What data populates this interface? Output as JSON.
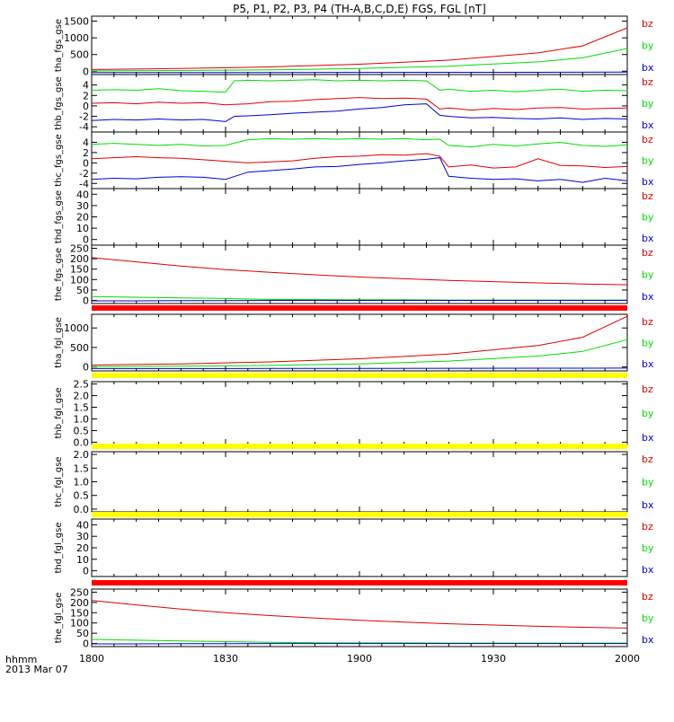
{
  "title": "P5, P1, P2, P3, P4 (TH-A,B,C,D,E) FGS, FGL [nT]",
  "x_axis": {
    "tick_labels": [
      "1800",
      "1830",
      "1900",
      "1930",
      "2000"
    ],
    "corner_label_1": "hhmm",
    "corner_label_2": "2013 Mar 07"
  },
  "colors": {
    "bx": "#0000cc",
    "by": "#00dd00",
    "bz": "#dd0000",
    "flag_red": "#ff0000",
    "flag_yellow": "#ffff00"
  },
  "chart_data": [
    {
      "type": "line",
      "ylabel": "tha_fgs_gse",
      "yticks": [
        "0",
        "500",
        "1000",
        "1500"
      ],
      "ylim": [
        -100,
        1650
      ],
      "legend": [
        "bz",
        "by",
        "bx"
      ],
      "x_minutes": [
        0,
        20,
        40,
        60,
        80,
        100,
        110,
        120
      ],
      "series": [
        {
          "name": "bz",
          "values": [
            50,
            80,
            130,
            210,
            330,
            550,
            760,
            1300
          ]
        },
        {
          "name": "by",
          "values": [
            10,
            20,
            40,
            80,
            150,
            280,
            400,
            680
          ]
        },
        {
          "name": "bx",
          "values": [
            -40,
            -40,
            -38,
            -36,
            -34,
            -32,
            -30,
            -28
          ]
        }
      ]
    },
    {
      "type": "line",
      "ylabel": "thb_fgs_gse",
      "yticks": [
        "-4",
        "-2",
        "0",
        "2",
        "4"
      ],
      "ylim": [
        -5,
        6
      ],
      "legend": [
        "bz",
        "by",
        "bx"
      ],
      "x_minutes": [
        0,
        5,
        10,
        15,
        20,
        25,
        30,
        32,
        35,
        40,
        45,
        50,
        55,
        60,
        65,
        70,
        75,
        78,
        80,
        85,
        90,
        95,
        100,
        105,
        110,
        115,
        120
      ],
      "series": [
        {
          "name": "by",
          "values": [
            3.0,
            3.1,
            3.0,
            3.3,
            2.9,
            2.8,
            2.6,
            4.8,
            4.9,
            4.8,
            4.9,
            5.0,
            4.8,
            4.9,
            4.8,
            4.9,
            4.8,
            3.0,
            3.2,
            2.8,
            3.0,
            2.7,
            3.0,
            3.2,
            2.8,
            3.0,
            2.9
          ]
        },
        {
          "name": "bz",
          "values": [
            0.5,
            0.6,
            0.4,
            0.7,
            0.5,
            0.6,
            0.2,
            0.3,
            0.4,
            0.8,
            0.9,
            1.2,
            1.4,
            1.6,
            1.4,
            1.5,
            1.3,
            -0.6,
            -0.4,
            -0.8,
            -0.5,
            -0.7,
            -0.4,
            -0.3,
            -0.6,
            -0.5,
            -0.4
          ]
        },
        {
          "name": "bx",
          "values": [
            -2.8,
            -2.6,
            -2.7,
            -2.5,
            -2.7,
            -2.6,
            -3.0,
            -2.0,
            -1.9,
            -1.7,
            -1.4,
            -1.2,
            -1.0,
            -0.6,
            -0.3,
            0.2,
            0.4,
            -1.8,
            -2.0,
            -2.3,
            -2.2,
            -2.4,
            -2.5,
            -2.3,
            -2.6,
            -2.4,
            -2.5
          ]
        }
      ]
    },
    {
      "type": "line",
      "ylabel": "thc_fgs_gse",
      "yticks": [
        "-4",
        "-2",
        "0",
        "2",
        "4"
      ],
      "ylim": [
        -5,
        6
      ],
      "legend": [
        "bz",
        "by",
        "bx"
      ],
      "x_minutes": [
        0,
        5,
        10,
        15,
        20,
        25,
        30,
        35,
        40,
        45,
        50,
        55,
        60,
        65,
        70,
        75,
        78,
        80,
        85,
        90,
        95,
        100,
        105,
        110,
        115,
        120
      ],
      "series": [
        {
          "name": "by",
          "values": [
            3.6,
            3.8,
            3.6,
            3.4,
            3.6,
            3.3,
            3.4,
            4.5,
            4.7,
            4.6,
            4.7,
            4.6,
            4.7,
            4.6,
            4.7,
            4.5,
            4.6,
            3.4,
            3.1,
            3.6,
            3.3,
            3.7,
            4.0,
            3.4,
            3.2,
            3.5
          ]
        },
        {
          "name": "bz",
          "values": [
            0.8,
            1.0,
            1.2,
            1.0,
            0.9,
            0.6,
            0.3,
            0.0,
            0.2,
            0.4,
            0.9,
            1.2,
            1.3,
            1.6,
            1.5,
            1.8,
            1.3,
            -0.8,
            -0.4,
            -1.0,
            -0.8,
            0.8,
            -0.5,
            -0.6,
            -0.9,
            -0.7
          ]
        },
        {
          "name": "bx",
          "values": [
            -3.2,
            -3.0,
            -3.1,
            -2.8,
            -2.7,
            -2.8,
            -3.2,
            -1.8,
            -1.5,
            -1.2,
            -0.8,
            -0.7,
            -0.3,
            0.0,
            0.4,
            0.7,
            1.0,
            -2.6,
            -3.0,
            -3.2,
            -3.1,
            -3.5,
            -3.2,
            -3.8,
            -3.0,
            -3.5
          ]
        }
      ]
    },
    {
      "type": "line",
      "ylabel": "thd_fgs_gse",
      "yticks": [
        "0",
        "10",
        "20",
        "30",
        "40"
      ],
      "ylim": [
        -5,
        45
      ],
      "legend": [
        "bz",
        "by",
        "bx"
      ],
      "x_minutes": [],
      "series": []
    },
    {
      "type": "line",
      "ylabel": "the_fgs_gse",
      "yticks": [
        "0",
        "50",
        "100",
        "150",
        "200",
        "250"
      ],
      "ylim": [
        -15,
        265
      ],
      "legend": [
        "bz",
        "by",
        "bx"
      ],
      "x_minutes": [
        0,
        10,
        20,
        30,
        40,
        50,
        60,
        70,
        80,
        90,
        100,
        110,
        120
      ],
      "series": [
        {
          "name": "bz",
          "values": [
            205,
            185,
            165,
            148,
            135,
            123,
            112,
            104,
            96,
            90,
            84,
            79,
            75
          ]
        },
        {
          "name": "by",
          "values": [
            18,
            15,
            12,
            9,
            5,
            4,
            3,
            3,
            2,
            2,
            2,
            2,
            2
          ]
        },
        {
          "name": "bx",
          "values": [
            -2,
            -2,
            -1,
            -1,
            0,
            0,
            0,
            0,
            0,
            0,
            0,
            0,
            0
          ]
        }
      ]
    },
    {
      "type": "line",
      "ylabel": "tha_fgl_gse",
      "yticks": [
        "0",
        "500",
        "1000"
      ],
      "ylim": [
        -100,
        1350
      ],
      "legend": [
        "bz",
        "by",
        "bx"
      ],
      "x_minutes": [
        0,
        20,
        40,
        60,
        80,
        100,
        110,
        120
      ],
      "series": [
        {
          "name": "bz",
          "values": [
            50,
            80,
            130,
            210,
            330,
            550,
            760,
            1300
          ]
        },
        {
          "name": "by",
          "values": [
            10,
            20,
            40,
            80,
            150,
            280,
            400,
            700
          ]
        },
        {
          "name": "bx",
          "values": [
            -40,
            -40,
            -38,
            -36,
            -34,
            -32,
            -30,
            -28
          ]
        }
      ]
    },
    {
      "type": "line",
      "ylabel": "thb_fgl_gse",
      "yticks": [
        "0.0",
        "0.5",
        "1.0",
        "1.5",
        "2.0",
        "2.5"
      ],
      "ylim": [
        -0.1,
        2.6
      ],
      "legend": [
        "bz",
        "by",
        "bx"
      ],
      "x_minutes": [],
      "series": []
    },
    {
      "type": "line",
      "ylabel": "thc_fgl_gse",
      "yticks": [
        "0.0",
        "0.5",
        "1.0",
        "1.5",
        "2.0"
      ],
      "ylim": [
        -0.1,
        2.1
      ],
      "legend": [
        "bz",
        "by",
        "bx"
      ],
      "x_minutes": [],
      "series": []
    },
    {
      "type": "line",
      "ylabel": "thd_fgl_gse",
      "yticks": [
        "0",
        "10",
        "20",
        "30",
        "40"
      ],
      "ylim": [
        -5,
        45
      ],
      "legend": [
        "bz",
        "by",
        "bx"
      ],
      "x_minutes": [],
      "series": []
    },
    {
      "type": "line",
      "ylabel": "the_fgl_gse",
      "yticks": [
        "0",
        "50",
        "100",
        "150",
        "200",
        "250"
      ],
      "ylim": [
        -15,
        265
      ],
      "legend": [
        "bz",
        "by",
        "bx"
      ],
      "x_minutes": [
        0,
        10,
        20,
        30,
        40,
        50,
        60,
        70,
        80,
        90,
        100,
        110,
        120
      ],
      "series": [
        {
          "name": "bz",
          "values": [
            210,
            188,
            168,
            150,
            136,
            124,
            113,
            104,
            96,
            90,
            84,
            79,
            75
          ]
        },
        {
          "name": "by",
          "values": [
            20,
            16,
            12,
            9,
            6,
            4,
            3,
            3,
            2,
            2,
            2,
            2,
            2
          ]
        },
        {
          "name": "bx",
          "values": [
            -2,
            -2,
            -1,
            -1,
            0,
            0,
            0,
            0,
            0,
            0,
            0,
            0,
            0
          ]
        }
      ]
    }
  ]
}
